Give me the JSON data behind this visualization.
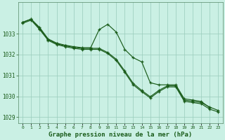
{
  "title": "Graphe pression niveau de la mer (hPa)",
  "background_color": "#caf0e4",
  "grid_color": "#99ccbb",
  "line_color": "#1a5c1a",
  "x_hours": [
    0,
    1,
    2,
    3,
    4,
    5,
    6,
    7,
    8,
    9,
    10,
    11,
    12,
    13,
    14,
    15,
    16,
    17,
    18,
    19,
    20,
    21,
    22,
    23
  ],
  "s1": [
    1033.55,
    1033.7,
    1033.3,
    1032.75,
    1032.55,
    1032.45,
    1032.38,
    1032.33,
    1032.33,
    1033.2,
    1033.45,
    1033.08,
    1032.25,
    1031.85,
    1031.65,
    1030.65,
    1030.55,
    1030.55,
    1030.55,
    1029.88,
    1029.82,
    1029.75,
    1029.45,
    null
  ],
  "s2": [
    1033.55,
    1033.7,
    1033.25,
    1032.72,
    1032.52,
    1032.42,
    1032.35,
    1032.3,
    1032.3,
    1032.3,
    1032.1,
    1031.78,
    1031.22,
    1030.62,
    1030.28,
    1029.98,
    1030.28,
    1030.5,
    1030.5,
    1029.82,
    1029.76,
    1029.7,
    1029.48,
    1029.32
  ],
  "s3": [
    1033.5,
    1033.65,
    1033.2,
    1032.68,
    1032.48,
    1032.38,
    1032.3,
    1032.25,
    1032.25,
    1032.25,
    1032.05,
    1031.72,
    1031.15,
    1030.55,
    1030.22,
    1029.92,
    1030.22,
    1030.45,
    1030.45,
    1029.76,
    1029.7,
    1029.64,
    1029.38,
    1029.25
  ],
  "ylim": [
    1028.7,
    1034.5
  ],
  "yticks": [
    1029,
    1030,
    1031,
    1032,
    1033
  ],
  "title_fontsize": 6.5
}
